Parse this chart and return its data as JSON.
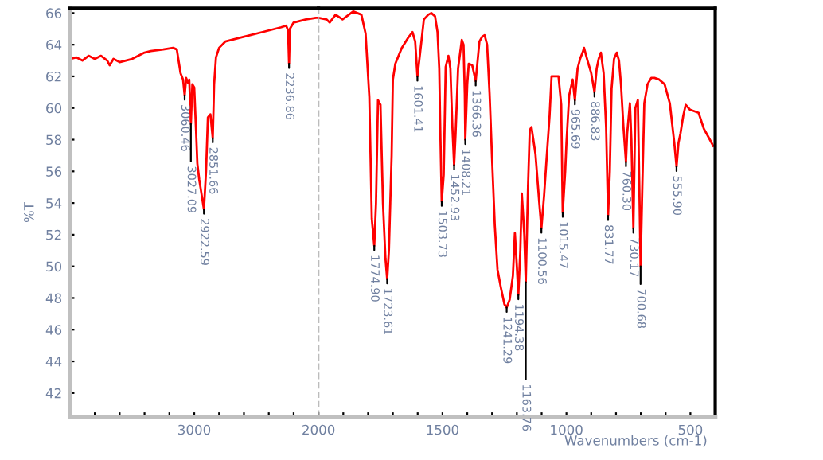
{
  "chart_data": [
    {
      "type": "line",
      "ylabel": "%T",
      "xlim": [
        4000,
        2000
      ],
      "ylim": [
        40.5,
        66.3
      ],
      "xticks": [
        {
          "value": 3800,
          "label": null
        },
        {
          "value": 3600,
          "label": null
        },
        {
          "value": 3400,
          "label": null
        },
        {
          "value": 3200,
          "label": null
        },
        3000,
        {
          "value": 2800,
          "label": null
        },
        {
          "value": 2600,
          "label": null
        },
        {
          "value": 2400,
          "label": null
        },
        {
          "value": 2200,
          "label": null
        },
        2000
      ],
      "yticks": [
        42,
        44,
        46,
        48,
        50,
        52,
        54,
        56,
        58,
        60,
        62,
        64,
        66
      ],
      "grid": false,
      "legend": false,
      "marker": "none",
      "line_style": "solid",
      "series": [
        {
          "color": "#ff0000",
          "x": [
            4000,
            3950,
            3900,
            3850,
            3800,
            3750,
            3700,
            3680,
            3650,
            3600,
            3550,
            3500,
            3450,
            3400,
            3350,
            3250,
            3170,
            3140,
            3110,
            3090,
            3077,
            3065,
            3050,
            3040,
            3027,
            3015,
            3000,
            2985,
            2975,
            2960,
            2940,
            2922,
            2905,
            2890,
            2870,
            2851,
            2840,
            2825,
            2800,
            2750,
            2600,
            2450,
            2300,
            2260,
            2245,
            2237,
            2230,
            2200,
            2100,
            2020,
            2000
          ],
          "values": [
            63.1,
            63.2,
            63.0,
            63.3,
            63.1,
            63.3,
            63.0,
            62.7,
            63.1,
            62.9,
            63.0,
            63.1,
            63.3,
            63.5,
            63.6,
            63.7,
            63.8,
            63.7,
            62.2,
            61.8,
            60.8,
            61.9,
            61.6,
            61.8,
            59.0,
            61.5,
            61.3,
            58.5,
            56.5,
            55.5,
            54.5,
            53.6,
            56.0,
            59.4,
            59.6,
            58.1,
            61.5,
            63.2,
            63.8,
            64.2,
            64.5,
            64.8,
            65.1,
            65.2,
            64.9,
            62.8,
            65.0,
            65.4,
            65.6,
            65.7,
            65.7
          ]
        }
      ],
      "annotations": [
        {
          "text": "3060.46",
          "x": 3077,
          "y": 60.8
        },
        {
          "text": "3027.09",
          "x": 3027,
          "y": 59.0
        },
        {
          "text": "2922.59",
          "x": 2922,
          "y": 53.6
        },
        {
          "text": "2851.66",
          "x": 2851,
          "y": 58.1
        },
        {
          "text": "2236.86",
          "x": 2237,
          "y": 62.8
        }
      ]
    },
    {
      "type": "line",
      "xlabel": "Wavenumbers (cm-1)",
      "xlim": [
        2000,
        400
      ],
      "ylim": [
        40.5,
        66.3
      ],
      "tick_labels": "x",
      "xticks": [
        {
          "value": 2000,
          "label": null
        },
        {
          "value": 1900,
          "label": null
        },
        {
          "value": 1800,
          "label": null
        },
        {
          "value": 1700,
          "label": null
        },
        {
          "value": 1600,
          "label": null
        },
        1500,
        {
          "value": 1400,
          "label": null
        },
        {
          "value": 1300,
          "label": null
        },
        {
          "value": 1200,
          "label": null
        },
        {
          "value": 1100,
          "label": null
        },
        1000,
        {
          "value": 900,
          "label": null
        },
        {
          "value": 800,
          "label": null
        },
        {
          "value": 700,
          "label": null
        },
        {
          "value": 600,
          "label": null
        },
        500
      ],
      "grid": false,
      "legend": false,
      "marker": "none",
      "line_style": "solid",
      "ref_lines": [
        {
          "axis": "x",
          "value": 2000,
          "label": null,
          "color": "#b0b0b0",
          "line_style": "dashed"
        }
      ],
      "series": [
        {
          "color": "#ff0000",
          "x": [
            2000,
            1968,
            1955,
            1931,
            1903,
            1860,
            1827,
            1810,
            1795,
            1785,
            1775,
            1768,
            1760,
            1750,
            1740,
            1730,
            1723,
            1716,
            1705,
            1700,
            1690,
            1664,
            1640,
            1621,
            1610,
            1601,
            1590,
            1575,
            1557,
            1545,
            1530,
            1520,
            1513,
            1508,
            1503,
            1495,
            1487,
            1476,
            1468,
            1460,
            1453,
            1447,
            1437,
            1422,
            1415,
            1410,
            1408,
            1400,
            1394,
            1380,
            1366,
            1351,
            1340,
            1330,
            1320,
            1310,
            1300,
            1289,
            1278,
            1265,
            1250,
            1241,
            1229,
            1216,
            1208,
            1200,
            1194,
            1186,
            1180,
            1170,
            1164,
            1155,
            1148,
            1141,
            1125,
            1110,
            1101,
            1090,
            1081,
            1068,
            1060,
            1032,
            1021,
            1015,
            1005,
            1000,
            989,
            975,
            966,
            955,
            945,
            935,
            929,
            915,
            900,
            887,
            878,
            870,
            861,
            850,
            840,
            832,
            825,
            818,
            808,
            797,
            788,
            780,
            770,
            760,
            755,
            744,
            738,
            730,
            722,
            712,
            706,
            701,
            694,
            686,
            673,
            658,
            645,
            626,
            604,
            583,
            565,
            556,
            548,
            540,
            529,
            519,
            502,
            467,
            446,
            425,
            408
          ],
          "values": [
            65.7,
            65.6,
            65.4,
            65.9,
            65.6,
            66.1,
            65.9,
            64.7,
            60.7,
            53.0,
            51.3,
            54.0,
            60.5,
            60.2,
            54.0,
            50.5,
            49.2,
            51.0,
            57.0,
            61.8,
            62.8,
            63.8,
            64.4,
            64.8,
            64.2,
            62.0,
            63.5,
            65.6,
            65.9,
            66.0,
            65.8,
            64.8,
            62.5,
            58.0,
            54.1,
            55.8,
            62.6,
            63.3,
            62.5,
            58.8,
            56.4,
            58.4,
            62.5,
            64.3,
            64.0,
            60.9,
            58.0,
            61.5,
            62.8,
            62.7,
            61.7,
            64.2,
            64.5,
            64.6,
            64.0,
            60.9,
            56.8,
            52.6,
            49.8,
            48.7,
            47.6,
            47.4,
            47.9,
            49.4,
            52.1,
            50.0,
            48.2,
            51.0,
            54.6,
            52.0,
            49.0,
            55.0,
            58.6,
            58.8,
            57.1,
            54.1,
            52.4,
            54.5,
            56.6,
            59.5,
            62.0,
            62.0,
            60.2,
            53.4,
            56.0,
            57.8,
            60.8,
            61.8,
            60.5,
            62.5,
            63.1,
            63.5,
            63.8,
            63.0,
            62.2,
            61.0,
            62.5,
            63.1,
            63.5,
            62.2,
            58.8,
            53.2,
            56.0,
            61.2,
            63.1,
            63.5,
            63.0,
            61.5,
            58.8,
            56.6,
            58.4,
            60.3,
            58.0,
            52.4,
            60.0,
            60.5,
            55.0,
            50.0,
            55.0,
            60.3,
            61.5,
            61.9,
            61.9,
            61.8,
            61.5,
            60.3,
            57.8,
            56.3,
            57.8,
            58.4,
            59.5,
            60.2,
            59.9,
            59.7,
            58.7,
            58.1,
            57.6
          ]
        }
      ],
      "annotations": [
        {
          "text": "1774.90",
          "x": 1775,
          "y": 51.3
        },
        {
          "text": "1723.61",
          "x": 1723,
          "y": 49.2
        },
        {
          "text": "1601.41",
          "x": 1601,
          "y": 62.0
        },
        {
          "text": "1503.73",
          "x": 1503,
          "y": 54.1
        },
        {
          "text": "1452.93",
          "x": 1453,
          "y": 56.4
        },
        {
          "text": "1408.21",
          "x": 1408,
          "y": 58.0
        },
        {
          "text": "1366.36",
          "x": 1366,
          "y": 61.7
        },
        {
          "text": "1241.29",
          "x": 1241,
          "y": 47.4
        },
        {
          "text": "1194.38",
          "x": 1194,
          "y": 48.2
        },
        {
          "text": "1163.76",
          "x": 1164,
          "y": 49.0
        },
        {
          "text": "1100.56",
          "x": 1101,
          "y": 52.4
        },
        {
          "text": "1015.47",
          "x": 1015,
          "y": 53.4
        },
        {
          "text": "965.69",
          "x": 966,
          "y": 60.5
        },
        {
          "text": "886.83",
          "x": 887,
          "y": 61.0
        },
        {
          "text": "831.77",
          "x": 832,
          "y": 53.2
        },
        {
          "text": "760.30",
          "x": 760,
          "y": 56.6
        },
        {
          "text": "730.17",
          "x": 730,
          "y": 52.4
        },
        {
          "text": "700.68",
          "x": 701,
          "y": 50.0
        },
        {
          "text": "555.90",
          "x": 556,
          "y": 56.3
        }
      ]
    }
  ]
}
